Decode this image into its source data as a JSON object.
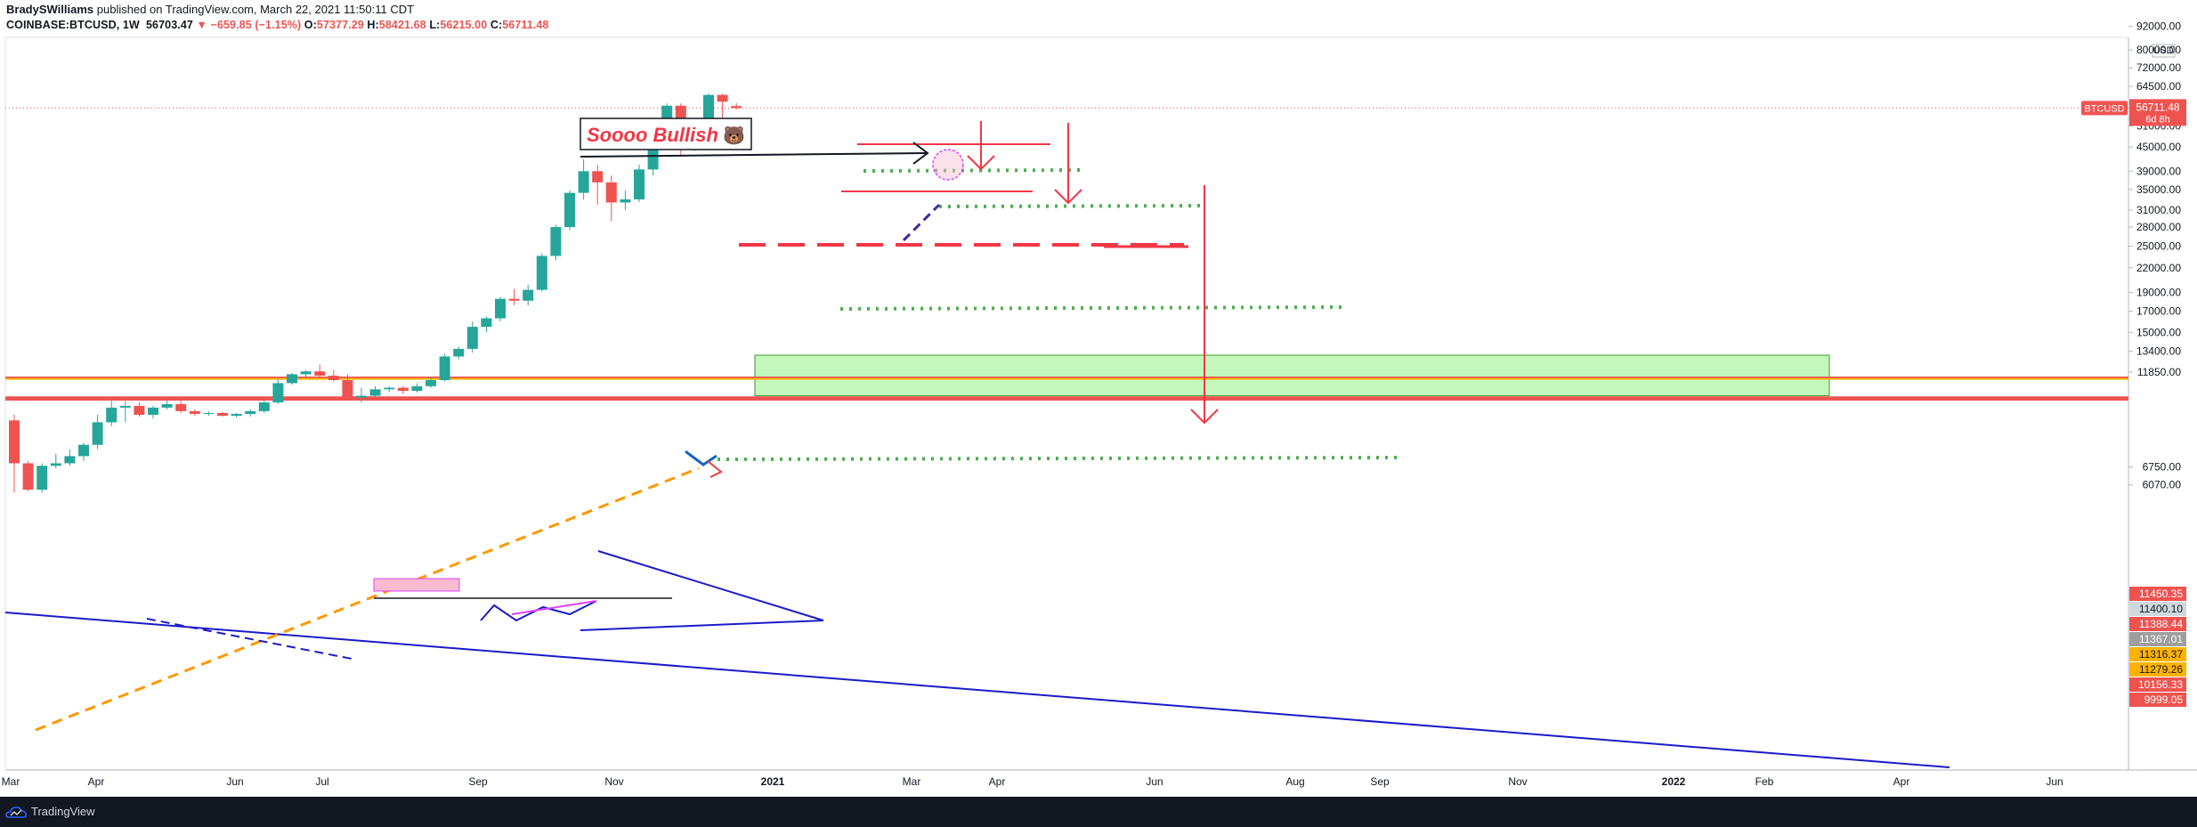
{
  "header": {
    "author": "BradySWilliams",
    "published": "published on TradingView.com, March 22, 2021 11:50:11 CDT",
    "symbol": "COINBASE:BTCUSD, 1W",
    "last": "56703.47",
    "change": "▼ −659.85 (−1.15%)",
    "o_label": "O:",
    "o_value": "57377.29",
    "h_label": "H:",
    "h_value": "58421.68",
    "l_label": "L:",
    "l_value": "56215.00",
    "c_label": "C:",
    "c_value": "56711.48"
  },
  "footer": {
    "brand": "TradingView"
  },
  "annotations": {
    "bullish_text": "Soooo Bullish",
    "bullish_emoji": "🐻"
  },
  "colors": {
    "up": "#26a69a",
    "down": "#ef5350",
    "trend_blue": "#1a1acc",
    "dashed_orange": "#ff9800",
    "box_green": "#b9f6b0",
    "arrow_red": "#f23645",
    "dotted_green": "#4caf50",
    "pink": "#e040fb"
  },
  "chart_data": {
    "type": "candlestick",
    "symbol": "BTCUSD",
    "interval": "1W",
    "scale": "log",
    "ylim": [
      5600,
      95000
    ],
    "currency": "USD",
    "price_ticks": [
      "92000.00",
      "80000.00",
      "72000.00",
      "64500.00",
      "51000.00",
      "45000.00",
      "39000.00",
      "35000.00",
      "31000.00",
      "28000.00",
      "25000.00",
      "22000.00",
      "19000.00",
      "17000.00",
      "15000.00",
      "13400.00",
      "11850.00",
      "6750.00",
      "6070.00"
    ],
    "time_ticks": [
      "Mar",
      "Apr",
      "Jun",
      "Jul",
      "Sep",
      "Nov",
      "2021",
      "Mar",
      "Apr",
      "Jun",
      "Aug",
      "Sep",
      "Nov",
      "2022",
      "Feb",
      "Apr",
      "Jun"
    ],
    "last_price": {
      "label": "BTCUSD",
      "value": "56711.48",
      "countdown": "6d 8h"
    },
    "price_labels": [
      {
        "value": "11450.35",
        "bg": "#ef5350",
        "fg": "#ffffff"
      },
      {
        "value": "11400.10",
        "bg": "#cfd8dc",
        "fg": "#131722"
      },
      {
        "value": "11388.44",
        "bg": "#ef5350",
        "fg": "#ffffff"
      },
      {
        "value": "11367.01",
        "bg": "#9e9e9e",
        "fg": "#ffffff"
      },
      {
        "value": "11316.37",
        "bg": "#ffb300",
        "fg": "#131722"
      },
      {
        "value": "11279.26",
        "bg": "#ffb300",
        "fg": "#131722"
      },
      {
        "value": "10156.33",
        "bg": "#ef5350",
        "fg": "#ffffff"
      },
      {
        "value": "9999.05",
        "bg": "#ef5350",
        "fg": "#ffffff"
      }
    ],
    "candles": [
      {
        "o": 8900,
        "h": 9200,
        "l": 5800,
        "c": 6900
      },
      {
        "o": 6900,
        "h": 7000,
        "l": 5850,
        "c": 5900
      },
      {
        "o": 5900,
        "h": 6900,
        "l": 5800,
        "c": 6800
      },
      {
        "o": 6800,
        "h": 7300,
        "l": 6700,
        "c": 6900
      },
      {
        "o": 6900,
        "h": 7500,
        "l": 6800,
        "c": 7200
      },
      {
        "o": 7200,
        "h": 7800,
        "l": 7000,
        "c": 7700
      },
      {
        "o": 7700,
        "h": 9200,
        "l": 7500,
        "c": 8800
      },
      {
        "o": 8800,
        "h": 10000,
        "l": 8600,
        "c": 9600
      },
      {
        "o": 9600,
        "h": 10000,
        "l": 8800,
        "c": 9700
      },
      {
        "o": 9700,
        "h": 9900,
        "l": 9100,
        "c": 9200
      },
      {
        "o": 9200,
        "h": 9700,
        "l": 9000,
        "c": 9600
      },
      {
        "o": 9600,
        "h": 10000,
        "l": 9500,
        "c": 9800
      },
      {
        "o": 9800,
        "h": 10000,
        "l": 9300,
        "c": 9400
      },
      {
        "o": 9400,
        "h": 9500,
        "l": 9150,
        "c": 9250
      },
      {
        "o": 9250,
        "h": 9400,
        "l": 9150,
        "c": 9300
      },
      {
        "o": 9300,
        "h": 9350,
        "l": 9100,
        "c": 9150
      },
      {
        "o": 9150,
        "h": 9300,
        "l": 9050,
        "c": 9250
      },
      {
        "o": 9250,
        "h": 9500,
        "l": 9100,
        "c": 9400
      },
      {
        "o": 9400,
        "h": 10000,
        "l": 9300,
        "c": 9900
      },
      {
        "o": 9900,
        "h": 11400,
        "l": 9800,
        "c": 11100
      },
      {
        "o": 11100,
        "h": 11800,
        "l": 11000,
        "c": 11700
      },
      {
        "o": 11700,
        "h": 12000,
        "l": 11500,
        "c": 11900
      },
      {
        "o": 11900,
        "h": 12400,
        "l": 11500,
        "c": 11600
      },
      {
        "o": 11600,
        "h": 12000,
        "l": 11200,
        "c": 11300
      },
      {
        "o": 11300,
        "h": 11700,
        "l": 10100,
        "c": 10200
      },
      {
        "o": 10200,
        "h": 10800,
        "l": 9900,
        "c": 10300
      },
      {
        "o": 10300,
        "h": 10900,
        "l": 10200,
        "c": 10700
      },
      {
        "o": 10700,
        "h": 10900,
        "l": 10500,
        "c": 10800
      },
      {
        "o": 10800,
        "h": 10900,
        "l": 10400,
        "c": 10600
      },
      {
        "o": 10600,
        "h": 11100,
        "l": 10500,
        "c": 10900
      },
      {
        "o": 10900,
        "h": 11500,
        "l": 10800,
        "c": 11300
      },
      {
        "o": 11300,
        "h": 13200,
        "l": 11200,
        "c": 13000
      },
      {
        "o": 13000,
        "h": 13800,
        "l": 12800,
        "c": 13600
      },
      {
        "o": 13600,
        "h": 16000,
        "l": 13300,
        "c": 15500
      },
      {
        "o": 15500,
        "h": 16500,
        "l": 15000,
        "c": 16300
      },
      {
        "o": 16300,
        "h": 18500,
        "l": 16000,
        "c": 18300
      },
      {
        "o": 18300,
        "h": 19400,
        "l": 17600,
        "c": 18100
      },
      {
        "o": 18100,
        "h": 19900,
        "l": 17600,
        "c": 19300
      },
      {
        "o": 19300,
        "h": 24000,
        "l": 19100,
        "c": 23600
      },
      {
        "o": 23600,
        "h": 28400,
        "l": 23000,
        "c": 28000
      },
      {
        "o": 28000,
        "h": 34800,
        "l": 27500,
        "c": 34300
      },
      {
        "o": 34300,
        "h": 41900,
        "l": 33000,
        "c": 39000
      },
      {
        "o": 39000,
        "h": 40500,
        "l": 32000,
        "c": 36500
      },
      {
        "o": 36500,
        "h": 38000,
        "l": 29000,
        "c": 32400
      },
      {
        "o": 32400,
        "h": 34800,
        "l": 31000,
        "c": 33000
      },
      {
        "o": 33000,
        "h": 40500,
        "l": 32500,
        "c": 39400
      },
      {
        "o": 39400,
        "h": 49000,
        "l": 38000,
        "c": 47000
      },
      {
        "o": 47000,
        "h": 58300,
        "l": 46200,
        "c": 57500
      },
      {
        "o": 57500,
        "h": 58300,
        "l": 43000,
        "c": 45000
      },
      {
        "o": 45000,
        "h": 52500,
        "l": 44000,
        "c": 49500
      },
      {
        "o": 49500,
        "h": 61800,
        "l": 49000,
        "c": 61300
      },
      {
        "o": 61300,
        "h": 61800,
        "l": 53300,
        "c": 58900
      },
      {
        "o": 57377,
        "h": 58422,
        "l": 56215,
        "c": 56711
      }
    ]
  }
}
